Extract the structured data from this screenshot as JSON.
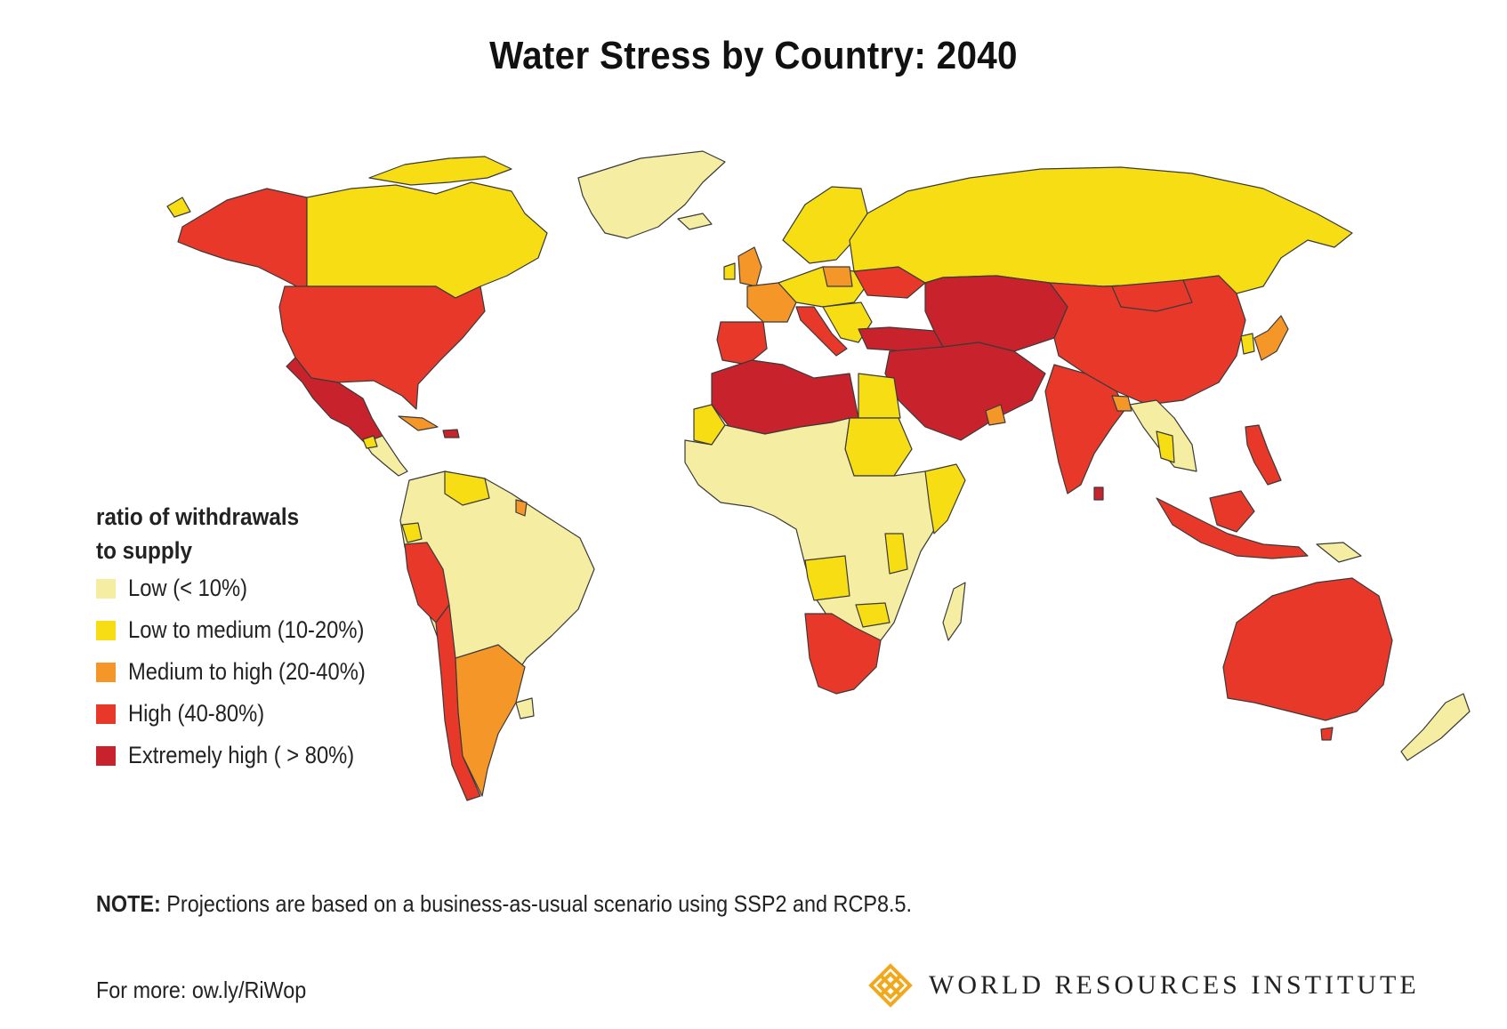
{
  "title": "Water Stress by Country: 2040",
  "legend": {
    "title_line1": "ratio of withdrawals",
    "title_line2": "to supply",
    "items": [
      {
        "label": "Low (< 10%)",
        "color": "#f5eea2"
      },
      {
        "label": "Low to medium (10-20%)",
        "color": "#f7dd14"
      },
      {
        "label": "Medium to high  (20-40%)",
        "color": "#f49628"
      },
      {
        "label": "High (40-80%)",
        "color": "#e8382a"
      },
      {
        "label": "Extremely high ( > 80%)",
        "color": "#c8232c"
      }
    ]
  },
  "note": {
    "label": "NOTE:",
    "text": " Projections are based on a business-as-usual scenario using SSP2 and RCP8.5."
  },
  "more": "For more: ow.ly/RiWop",
  "brand": {
    "name": "WORLD RESOURCES INSTITUTE",
    "icon": "wri-logo-icon"
  }
}
